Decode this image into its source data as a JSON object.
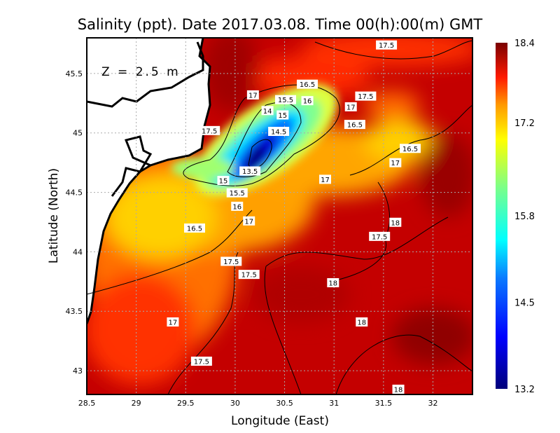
{
  "chart_data": {
    "type": "heatmap",
    "title": "Salinity (ppt). Date 2017.03.08. Time 00(h):00(m) GMT",
    "xlabel": "Longitude (East)",
    "ylabel": "Latitude (North)",
    "annotation": "Z = 2.5 m",
    "xlim": [
      28.5,
      32.4
    ],
    "ylim": [
      42.8,
      45.8
    ],
    "xticks": [
      "28.5",
      "29",
      "29.5",
      "30",
      "30.5",
      "31",
      "31.5",
      "32"
    ],
    "xtick_values": [
      28.5,
      29,
      29.5,
      30,
      30.5,
      31,
      31.5,
      32
    ],
    "yticks": [
      "43",
      "43.5",
      "44",
      "44.5",
      "45",
      "45.5"
    ],
    "ytick_values": [
      43,
      43.5,
      44,
      44.5,
      45,
      45.5
    ],
    "grid": true,
    "colorbar": {
      "min": 13.2,
      "max": 18.4,
      "ticks": [
        "18.4",
        "17.2",
        "15.8",
        "14.5",
        "13.2"
      ],
      "tick_values": [
        18.4,
        17.2,
        15.8,
        14.5,
        13.2
      ]
    },
    "contour_labels": [
      {
        "text": "17.5",
        "lon": 31.53,
        "lat": 45.74
      },
      {
        "text": "17",
        "lon": 30.18,
        "lat": 45.32
      },
      {
        "text": "16.5",
        "lon": 30.73,
        "lat": 45.41
      },
      {
        "text": "16",
        "lon": 30.73,
        "lat": 45.36
      },
      {
        "text": "15.5",
        "lon": 30.51,
        "lat": 45.28
      },
      {
        "text": "15",
        "lon": 30.48,
        "lat": 45.24
      },
      {
        "text": "14.5",
        "lon": 30.44,
        "lat": 45.19
      },
      {
        "text": "14",
        "lon": 30.44,
        "lat": 45.1
      },
      {
        "text": "17.5",
        "lon": 31.32,
        "lat": 45.31
      },
      {
        "text": "17",
        "lon": 31.17,
        "lat": 45.22
      },
      {
        "text": "16.5",
        "lon": 31.21,
        "lat": 45.16
      },
      {
        "text": "17.5",
        "lon": 29.74,
        "lat": 45.02
      },
      {
        "text": "16.5",
        "lon": 31.77,
        "lat": 44.87
      },
      {
        "text": "17",
        "lon": 31.62,
        "lat": 44.75
      },
      {
        "text": "13.5",
        "lon": 30.15,
        "lat": 44.68
      },
      {
        "text": "15",
        "lon": 29.88,
        "lat": 44.6
      },
      {
        "text": "15.5",
        "lon": 30.02,
        "lat": 44.585
      },
      {
        "text": "16",
        "lon": 30.02,
        "lat": 44.56
      },
      {
        "text": "17",
        "lon": 30.91,
        "lat": 44.61
      },
      {
        "text": "16.5",
        "lon": 29.59,
        "lat": 44.2
      },
      {
        "text": "17",
        "lon": 30.14,
        "lat": 44.26
      },
      {
        "text": "17.5",
        "lon": 31.46,
        "lat": 44.13
      },
      {
        "text": "18",
        "lon": 31.62,
        "lat": 44.16
      },
      {
        "text": "17.5",
        "lon": 29.96,
        "lat": 43.92
      },
      {
        "text": "17.5",
        "lon": 30.14,
        "lat": 43.81
      },
      {
        "text": "18",
        "lon": 30.99,
        "lat": 43.74
      },
      {
        "text": "18",
        "lon": 31.28,
        "lat": 43.41
      },
      {
        "text": "17",
        "lon": 29.37,
        "lat": 43.41
      },
      {
        "text": "17.5",
        "lon": 29.66,
        "lat": 43.08
      },
      {
        "text": "18",
        "lon": 31.65,
        "lat": 42.81
      }
    ]
  }
}
